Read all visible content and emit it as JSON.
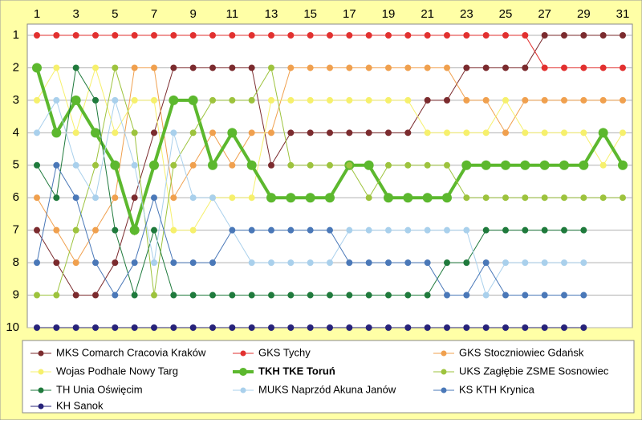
{
  "chart_data": {
    "type": "line",
    "x": [
      1,
      2,
      3,
      4,
      5,
      6,
      7,
      8,
      9,
      10,
      11,
      12,
      13,
      14,
      15,
      16,
      17,
      18,
      19,
      20,
      21,
      22,
      23,
      24,
      25,
      26,
      27,
      28,
      29,
      30,
      31
    ],
    "xlim": [
      1,
      31
    ],
    "xticks": [
      1,
      3,
      5,
      7,
      9,
      11,
      13,
      15,
      17,
      19,
      21,
      23,
      25,
      27,
      29,
      31
    ],
    "ylim": [
      1,
      10
    ],
    "yticks": [
      1,
      2,
      3,
      4,
      5,
      6,
      7,
      8,
      9,
      10
    ],
    "y_inverted": true,
    "grid": true,
    "series": [
      {
        "name": "MKS Comarch Cracovia Kraków",
        "color": "#7b2b2e",
        "values": [
          7,
          8,
          9,
          9,
          8,
          6,
          4,
          2,
          2,
          2,
          2,
          2,
          5,
          4,
          4,
          4,
          4,
          4,
          4,
          4,
          3,
          3,
          2,
          2,
          2,
          2,
          1,
          1,
          1,
          1,
          1
        ]
      },
      {
        "name": "GKS Tychy",
        "color": "#e2302f",
        "values": [
          1,
          1,
          1,
          1,
          1,
          1,
          1,
          1,
          1,
          1,
          1,
          1,
          1,
          1,
          1,
          1,
          1,
          1,
          1,
          1,
          1,
          1,
          1,
          1,
          1,
          1,
          2,
          2,
          2,
          2,
          2
        ]
      },
      {
        "name": "GKS Stoczniowiec Gdańsk",
        "color": "#f0a04e",
        "values": [
          6,
          7,
          8,
          7,
          6,
          2,
          2,
          6,
          5,
          4,
          5,
          4,
          4,
          2,
          2,
          2,
          2,
          2,
          2,
          2,
          2,
          2,
          3,
          3,
          4,
          3,
          3,
          3,
          3,
          3,
          3
        ]
      },
      {
        "name": "Wojas Podhale Nowy Targ",
        "color": "#f6f06c",
        "values": [
          3,
          2,
          4,
          2,
          4,
          3,
          3,
          7,
          7,
          6,
          6,
          6,
          3,
          3,
          3,
          3,
          3,
          3,
          3,
          3,
          4,
          4,
          4,
          4,
          3,
          4,
          4,
          4,
          4,
          5,
          4
        ]
      },
      {
        "name": "TKH TKE Toruń",
        "color": "#5cb82e",
        "highlight": true,
        "values": [
          2,
          4,
          3,
          4,
          5,
          7,
          5,
          3,
          3,
          5,
          4,
          5,
          6,
          6,
          6,
          6,
          5,
          5,
          6,
          6,
          6,
          6,
          5,
          5,
          5,
          5,
          5,
          5,
          5,
          4,
          5
        ]
      },
      {
        "name": "UKS Zagłębie ZSME Sosnowiec",
        "color": "#9dc33d",
        "values": [
          9,
          9,
          7,
          5,
          2,
          4,
          9,
          5,
          4,
          3,
          3,
          3,
          2,
          5,
          5,
          5,
          5,
          6,
          5,
          5,
          5,
          5,
          6,
          6,
          6,
          6,
          6,
          6,
          6,
          6,
          6
        ]
      },
      {
        "name": "TH Unia Oświęcim",
        "color": "#1f7a3c",
        "values": [
          5,
          6,
          2,
          3,
          7,
          9,
          7,
          9,
          9,
          9,
          9,
          9,
          9,
          9,
          9,
          9,
          9,
          9,
          9,
          9,
          9,
          8,
          8,
          7,
          7,
          7,
          7,
          7,
          7,
          null,
          null
        ]
      },
      {
        "name": "MUKS Naprzód Akuna Janów",
        "color": "#a9d0ec",
        "values": [
          4,
          3,
          5,
          6,
          3,
          5,
          8,
          4,
          6,
          6,
          7,
          8,
          8,
          8,
          8,
          8,
          7,
          7,
          7,
          7,
          7,
          7,
          7,
          9,
          8,
          8,
          8,
          8,
          8,
          null,
          null
        ]
      },
      {
        "name": "KS KTH Krynica",
        "color": "#4a78b8",
        "values": [
          8,
          5,
          6,
          8,
          9,
          8,
          6,
          8,
          8,
          8,
          7,
          7,
          7,
          7,
          7,
          7,
          8,
          8,
          8,
          8,
          8,
          9,
          9,
          8,
          9,
          9,
          9,
          9,
          9,
          null,
          null
        ]
      },
      {
        "name": "KH Sanok",
        "color": "#27237a",
        "values": [
          10,
          10,
          10,
          10,
          10,
          10,
          10,
          10,
          10,
          10,
          10,
          10,
          10,
          10,
          10,
          10,
          10,
          10,
          10,
          10,
          10,
          10,
          10,
          10,
          10,
          10,
          10,
          10,
          10,
          null,
          null
        ]
      }
    ]
  }
}
